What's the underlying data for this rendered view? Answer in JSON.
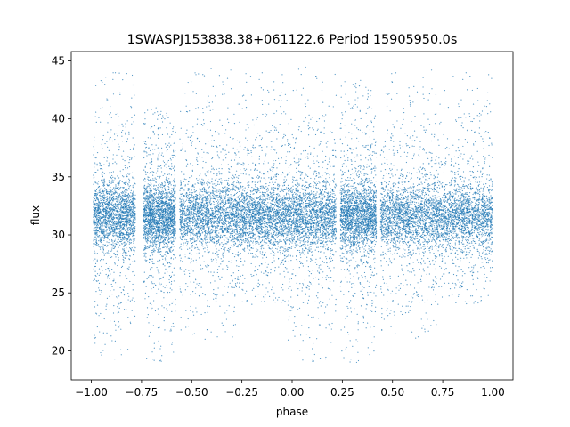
{
  "chart_data": {
    "type": "scatter",
    "title": "1SWASPJ153838.38+061122.6 Period 15905950.0s",
    "xlabel": "phase",
    "ylabel": "flux",
    "xlim": [
      -1.1,
      1.1
    ],
    "ylim": [
      17.5,
      45.8
    ],
    "x_ticks": [
      -1.0,
      -0.75,
      -0.5,
      -0.25,
      0.0,
      0.25,
      0.5,
      0.75,
      1.0
    ],
    "x_tick_labels": [
      "−1.00",
      "−0.75",
      "−0.50",
      "−0.25",
      "0.00",
      "0.25",
      "0.50",
      "0.75",
      "1.00"
    ],
    "y_ticks": [
      20,
      25,
      30,
      35,
      40,
      45
    ],
    "y_tick_labels": [
      "20",
      "25",
      "30",
      "35",
      "40",
      "45"
    ],
    "grid": false,
    "legend": "none",
    "marker_color": "#1f77b4",
    "phase_range": [
      -1.0,
      1.0
    ],
    "baseline_flux": 31.6,
    "series_clusters": [
      {
        "x_from": -0.99,
        "x_to": -0.78,
        "y_min": 19.0,
        "y_max": 44.0
      },
      {
        "x_from": -0.74,
        "x_to": -0.58,
        "y_min": 19.0,
        "y_max": 41.0
      },
      {
        "x_from": -0.56,
        "x_to": -0.28,
        "y_min": 21.0,
        "y_max": 44.5
      },
      {
        "x_from": -0.28,
        "x_to": -0.03,
        "y_min": 24.0,
        "y_max": 44.0
      },
      {
        "x_from": -0.03,
        "x_to": 0.22,
        "y_min": 19.0,
        "y_max": 44.5
      },
      {
        "x_from": 0.24,
        "x_to": 0.42,
        "y_min": 19.0,
        "y_max": 43.5
      },
      {
        "x_from": 0.44,
        "x_to": 0.72,
        "y_min": 21.0,
        "y_max": 44.5
      },
      {
        "x_from": 0.72,
        "x_to": 1.0,
        "y_min": 24.0,
        "y_max": 44.0
      }
    ]
  }
}
